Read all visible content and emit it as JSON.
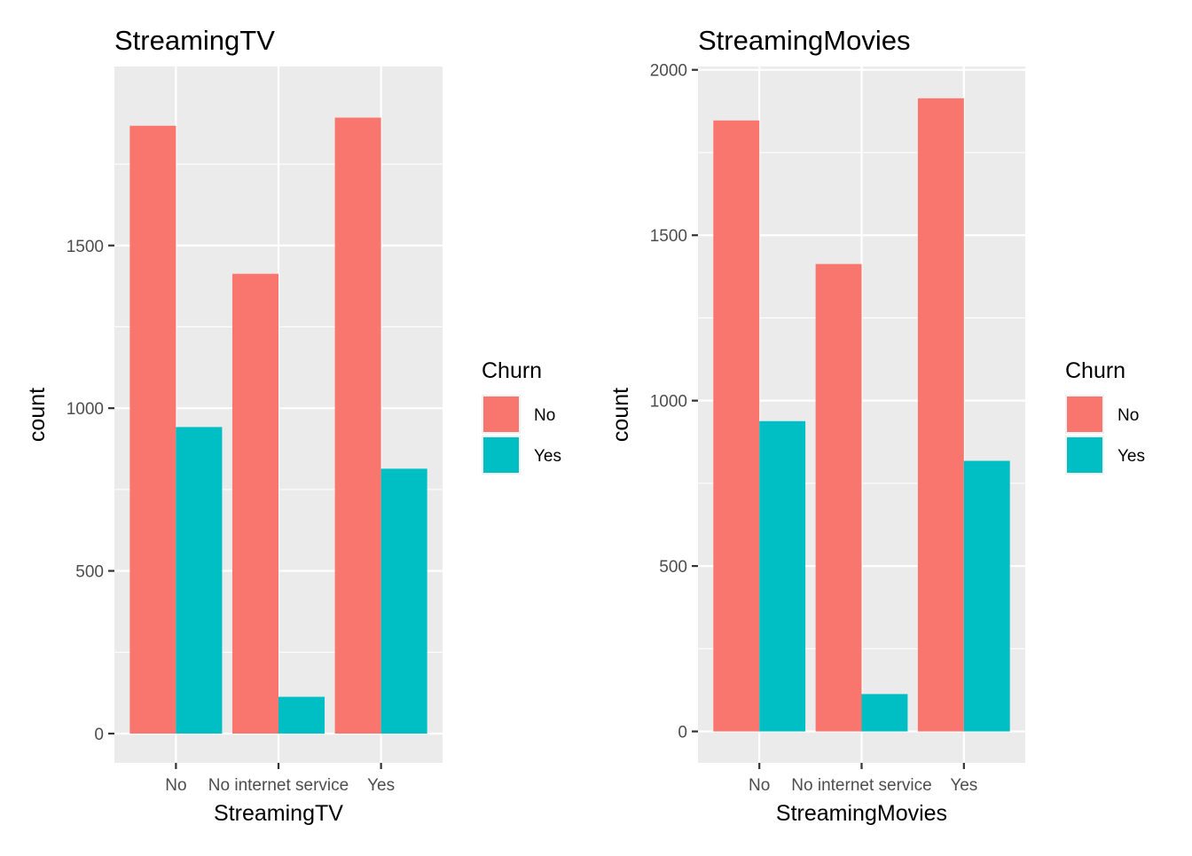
{
  "chart_data": [
    {
      "type": "bar",
      "title": "StreamingTV",
      "xlabel": "StreamingTV",
      "ylabel": "count",
      "categories": [
        "No",
        "No internet service",
        "Yes"
      ],
      "series": [
        {
          "name": "No",
          "values": [
            1868,
            1413,
            1893
          ]
        },
        {
          "name": "Yes",
          "values": [
            942,
            113,
            814
          ]
        }
      ],
      "ylim": [
        -90,
        2050
      ],
      "yticks": [
        0,
        500,
        1000,
        1500
      ],
      "grid": true,
      "legend": {
        "title": "Churn",
        "placement": "right"
      }
    },
    {
      "type": "bar",
      "title": "StreamingMovies",
      "xlabel": "StreamingMovies",
      "ylabel": "count",
      "categories": [
        "No",
        "No internet service",
        "Yes"
      ],
      "series": [
        {
          "name": "No",
          "values": [
            1847,
            1413,
            1914
          ]
        },
        {
          "name": "Yes",
          "values": [
            938,
            113,
            818
          ]
        }
      ],
      "ylim": [
        -95,
        2010
      ],
      "yticks": [
        0,
        500,
        1000,
        1500,
        2000
      ],
      "grid": true,
      "legend": {
        "title": "Churn",
        "placement": "right"
      }
    }
  ],
  "colors": {
    "No": "#f8766d",
    "Yes": "#00bfc4",
    "panel": "#ebebeb",
    "gridline": "#ffffff",
    "tick_text": "#4d4d4d"
  }
}
